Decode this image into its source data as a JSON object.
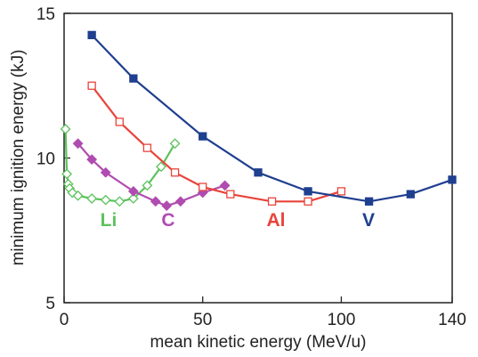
{
  "chart_data": {
    "type": "line",
    "xlabel": "mean kinetic energy (MeV/u)",
    "ylabel": "minimum ignition energy (kJ)",
    "xlim": [
      0,
      140
    ],
    "ylim": [
      5,
      15
    ],
    "x_ticks": [
      "0",
      "50",
      "100",
      "140"
    ],
    "y_ticks": [
      "5",
      "10",
      "15"
    ],
    "grid": false,
    "legend": "inline labels",
    "series": [
      {
        "name": "Li",
        "color": "#5cc35c",
        "marker": "diamond-open",
        "x": [
          0.5,
          1,
          1.5,
          2,
          3,
          5,
          10,
          15,
          20,
          25,
          30,
          35,
          40
        ],
        "y": [
          11.0,
          9.45,
          9.1,
          8.95,
          8.8,
          8.7,
          8.6,
          8.55,
          8.5,
          8.6,
          9.05,
          9.7,
          10.5
        ]
      },
      {
        "name": "C",
        "color": "#b04cb0",
        "marker": "diamond-filled",
        "x": [
          5,
          10,
          15,
          25,
          33,
          37,
          42,
          50,
          58
        ],
        "y": [
          10.5,
          9.95,
          9.5,
          8.85,
          8.5,
          8.35,
          8.5,
          8.8,
          9.05
        ]
      },
      {
        "name": "Al",
        "color": "#e8443a",
        "marker": "square-open",
        "x": [
          10,
          20,
          30,
          40,
          50,
          60,
          75,
          88,
          100
        ],
        "y": [
          12.5,
          11.25,
          10.35,
          9.5,
          9.0,
          8.75,
          8.5,
          8.5,
          8.85
        ]
      },
      {
        "name": "V",
        "color": "#1f3f8f",
        "marker": "square-filled",
        "x": [
          10,
          25,
          50,
          70,
          88,
          110,
          125,
          140
        ],
        "y": [
          14.25,
          12.75,
          10.75,
          9.5,
          8.85,
          8.5,
          8.75,
          9.25
        ]
      }
    ]
  }
}
